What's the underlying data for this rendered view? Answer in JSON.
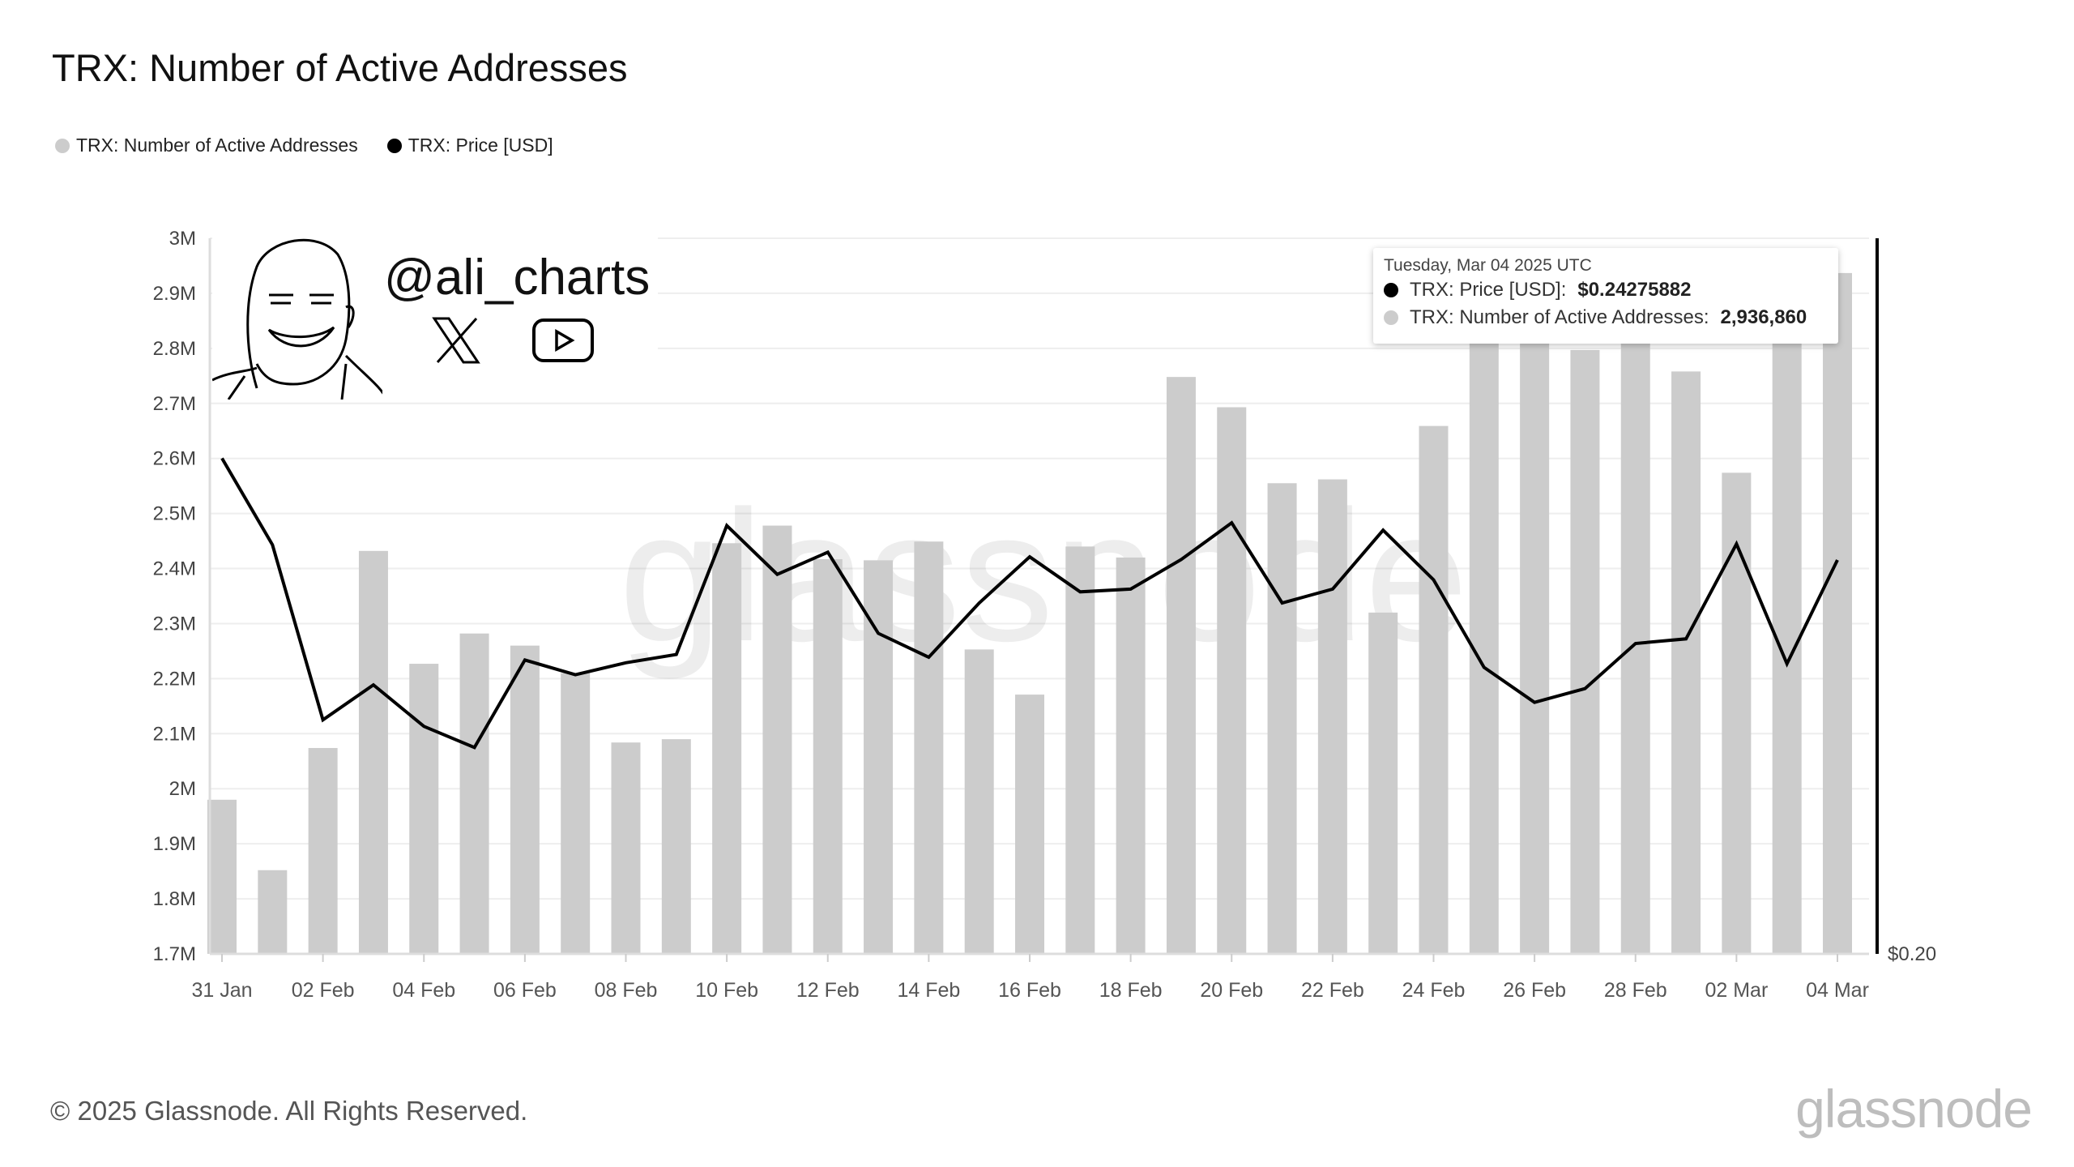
{
  "title": "TRX: Number of Active Addresses",
  "legend": [
    {
      "label": "TRX: Number of Active Addresses",
      "color": "#cccccc"
    },
    {
      "label": "TRX: Price [USD]",
      "color": "#000000"
    }
  ],
  "watermark": "glassnode",
  "promo": {
    "handle": "@ali_charts"
  },
  "tooltip": {
    "date": "Tuesday, Mar 04 2025 UTC",
    "price_label": "TRX: Price [USD]:",
    "price_value": "$0.24275882",
    "addr_label": "TRX: Number of Active Addresses:",
    "addr_value": "2,936,860"
  },
  "footer": {
    "copyright": "© 2025 Glassnode. All Rights Reserved.",
    "brand": "glassnode"
  },
  "chart_data": {
    "type": "bar+line",
    "title": "TRX: Number of Active Addresses",
    "left_axis": {
      "ylim": [
        1700000,
        3000000
      ],
      "ticks": [
        "1.7M",
        "1.8M",
        "1.9M",
        "2M",
        "2.1M",
        "2.2M",
        "2.3M",
        "2.4M",
        "2.5M",
        "2.6M",
        "2.7M",
        "2.8M",
        "2.9M",
        "3M"
      ]
    },
    "right_axis": {
      "ticks": [
        "$0.20"
      ],
      "min": 0.2,
      "scale_ref": [
        0.2,
        0.24275882
      ]
    },
    "x": [
      "31 Jan",
      "01 Feb",
      "02 Feb",
      "03 Feb",
      "04 Feb",
      "05 Feb",
      "06 Feb",
      "07 Feb",
      "08 Feb",
      "09 Feb",
      "10 Feb",
      "11 Feb",
      "12 Feb",
      "13 Feb",
      "14 Feb",
      "15 Feb",
      "16 Feb",
      "17 Feb",
      "18 Feb",
      "19 Feb",
      "20 Feb",
      "21 Feb",
      "22 Feb",
      "23 Feb",
      "24 Feb",
      "25 Feb",
      "26 Feb",
      "27 Feb",
      "28 Feb",
      "01 Mar",
      "02 Mar",
      "03 Mar",
      "04 Mar"
    ],
    "x_tick_labels": [
      "31 Jan",
      "02 Feb",
      "04 Feb",
      "06 Feb",
      "08 Feb",
      "10 Feb",
      "12 Feb",
      "14 Feb",
      "16 Feb",
      "18 Feb",
      "20 Feb",
      "22 Feb",
      "24 Feb",
      "26 Feb",
      "28 Feb",
      "02 Mar",
      "04 Mar"
    ],
    "series": [
      {
        "name": "TRX: Number of Active Addresses",
        "type": "bar",
        "color": "#cccccc",
        "values": [
          1980000,
          1852000,
          2074000,
          2432000,
          2227000,
          2282000,
          2260000,
          2210000,
          2084000,
          2090000,
          2446000,
          2478000,
          2417000,
          2415000,
          2449000,
          2253000,
          2171000,
          2440000,
          2420000,
          2748000,
          2693000,
          2555000,
          2562000,
          2320000,
          2659000,
          2850000,
          2880000,
          2797000,
          2830000,
          2758000,
          2574000,
          2860000,
          2936860
        ]
      },
      {
        "name": "TRX: Price [USD]",
        "type": "line",
        "color": "#000000",
        "values": [
          0.2538,
          0.2444,
          0.2254,
          0.2292,
          0.2247,
          0.2224,
          0.2319,
          0.2303,
          0.2316,
          0.2325,
          0.2465,
          0.2412,
          0.2436,
          0.2348,
          0.2322,
          0.2381,
          0.2431,
          0.2393,
          0.2396,
          0.2428,
          0.2468,
          0.2381,
          0.2396,
          0.246,
          0.2406,
          0.2311,
          0.2273,
          0.2288,
          0.2337,
          0.2342,
          0.2445,
          0.2315,
          0.24275882
        ]
      }
    ],
    "grid": true,
    "legend_position": "top-left"
  }
}
